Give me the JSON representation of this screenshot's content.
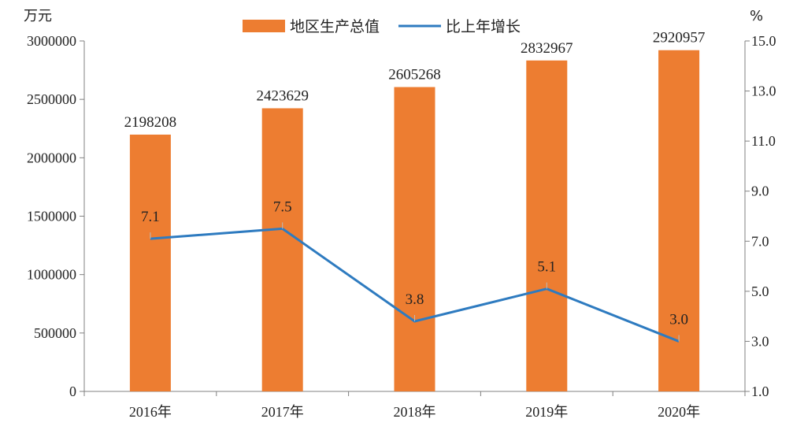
{
  "chart_data": {
    "type": "bar+line",
    "categories": [
      "2016年",
      "2017年",
      "2018年",
      "2019年",
      "2020年"
    ],
    "series": [
      {
        "name": "地区生产总值",
        "type": "bar",
        "axis": "left",
        "values": [
          2198208,
          2423629,
          2605268,
          2832967,
          2920957
        ],
        "color": "#ED7D31"
      },
      {
        "name": "比上年增长",
        "type": "line",
        "axis": "right",
        "values": [
          7.1,
          7.5,
          3.8,
          5.1,
          3.0
        ],
        "color": "#2E7BC0"
      }
    ],
    "y_left": {
      "unit": "万元",
      "range": [
        0,
        3000000
      ],
      "ticks": [
        "0",
        "500000",
        "1000000",
        "1500000",
        "2000000",
        "2500000",
        "3000000"
      ]
    },
    "y_right": {
      "unit": "%",
      "range": [
        1.0,
        15.0
      ],
      "ticks": [
        "1.0",
        "3.0",
        "5.0",
        "7.0",
        "9.0",
        "11.0",
        "13.0",
        "15.0"
      ]
    },
    "bar_labels": [
      "2198208",
      "2423629",
      "2605268",
      "2832967",
      "2920957"
    ],
    "line_labels": [
      "7.1",
      "7.5",
      "3.8",
      "5.1",
      "3.0"
    ],
    "legend_position": "top",
    "grid": false
  }
}
